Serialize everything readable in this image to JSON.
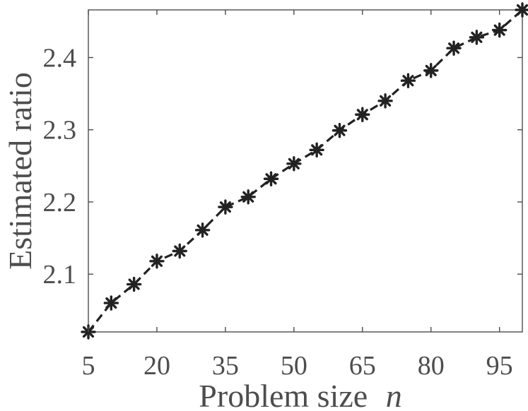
{
  "chart_data": {
    "type": "line",
    "xlabel": "Problem size",
    "xlabel_var": "n",
    "ylabel": "Estimated ratio",
    "x": [
      5,
      10,
      15,
      20,
      25,
      30,
      35,
      40,
      45,
      50,
      55,
      60,
      65,
      70,
      75,
      80,
      85,
      90,
      95,
      100
    ],
    "series": [
      {
        "values": [
          2.02,
          2.06,
          2.086,
          2.118,
          2.132,
          2.161,
          2.193,
          2.207,
          2.232,
          2.253,
          2.272,
          2.299,
          2.321,
          2.34,
          2.368,
          2.382,
          2.413,
          2.428,
          2.438,
          2.466
        ],
        "line_style": "dashed",
        "marker": "asterisk",
        "color": "#222222"
      }
    ],
    "xticks": [
      "5",
      "20",
      "35",
      "50",
      "65",
      "80",
      "95"
    ],
    "yticks": [
      "2.1",
      "2.2",
      "2.3",
      "2.4"
    ],
    "xlim": [
      5,
      100
    ],
    "ylim": [
      2.02,
      2.466
    ],
    "grid": false,
    "legend": "none"
  }
}
